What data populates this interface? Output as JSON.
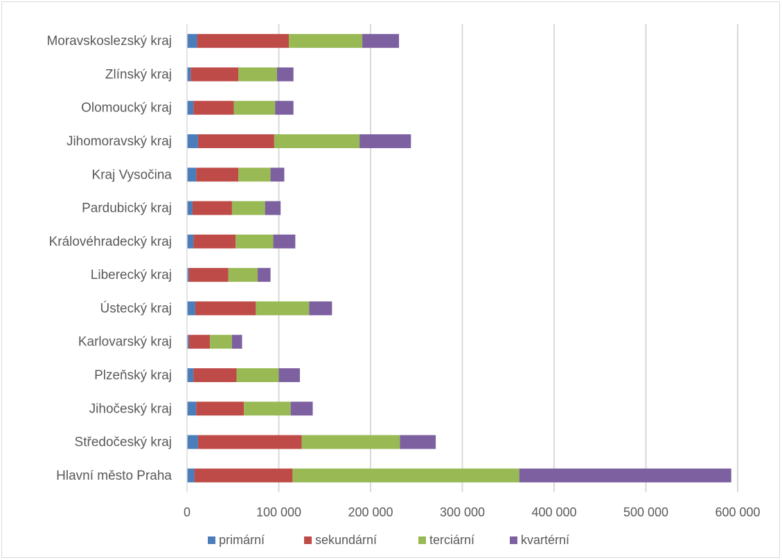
{
  "chart_data": {
    "type": "bar",
    "orientation": "horizontal",
    "stacked": true,
    "title": "",
    "xlabel": "",
    "ylabel": "",
    "xlim": [
      0,
      600000
    ],
    "x_ticks": [
      0,
      100000,
      200000,
      300000,
      400000,
      500000,
      600000
    ],
    "x_tick_labels": [
      "0",
      "100 000",
      "200 000",
      "300 000",
      "400 000",
      "500 000",
      "600 000"
    ],
    "grid": "vertical",
    "legend_position": "bottom",
    "categories": [
      "Moravskoslezský kraj",
      "Zlínský kraj",
      "Olomoucký kraj",
      "Jihomoravský kraj",
      "Kraj Vysočina",
      "Pardubický kraj",
      "Královéhradecký kraj",
      "Liberecký kraj",
      "Ústecký kraj",
      "Karlovarský kraj",
      "Plzeňský kraj",
      "Jihočeský kraj",
      "Středočeský kraj",
      "Hlavní město Praha"
    ],
    "series": [
      {
        "name": "primární",
        "color": "#4a7ebb",
        "values": [
          11000,
          4000,
          7000,
          12000,
          10000,
          6000,
          7000,
          2000,
          9000,
          2000,
          7000,
          10000,
          12000,
          8000
        ]
      },
      {
        "name": "sekundární",
        "color": "#be4b48",
        "values": [
          100000,
          52000,
          44000,
          83000,
          46000,
          43000,
          46000,
          43000,
          66000,
          23000,
          47000,
          52000,
          113000,
          107000
        ]
      },
      {
        "name": "terciární",
        "color": "#98b954",
        "values": [
          80000,
          42000,
          45000,
          93000,
          35000,
          36000,
          41000,
          32000,
          58000,
          24000,
          46000,
          51000,
          107000,
          247000
        ]
      },
      {
        "name": "kvartérní",
        "color": "#7d60a0",
        "values": [
          40000,
          18000,
          20000,
          56000,
          15000,
          17000,
          24000,
          14000,
          25000,
          11000,
          23000,
          24000,
          39000,
          231000
        ]
      }
    ]
  }
}
